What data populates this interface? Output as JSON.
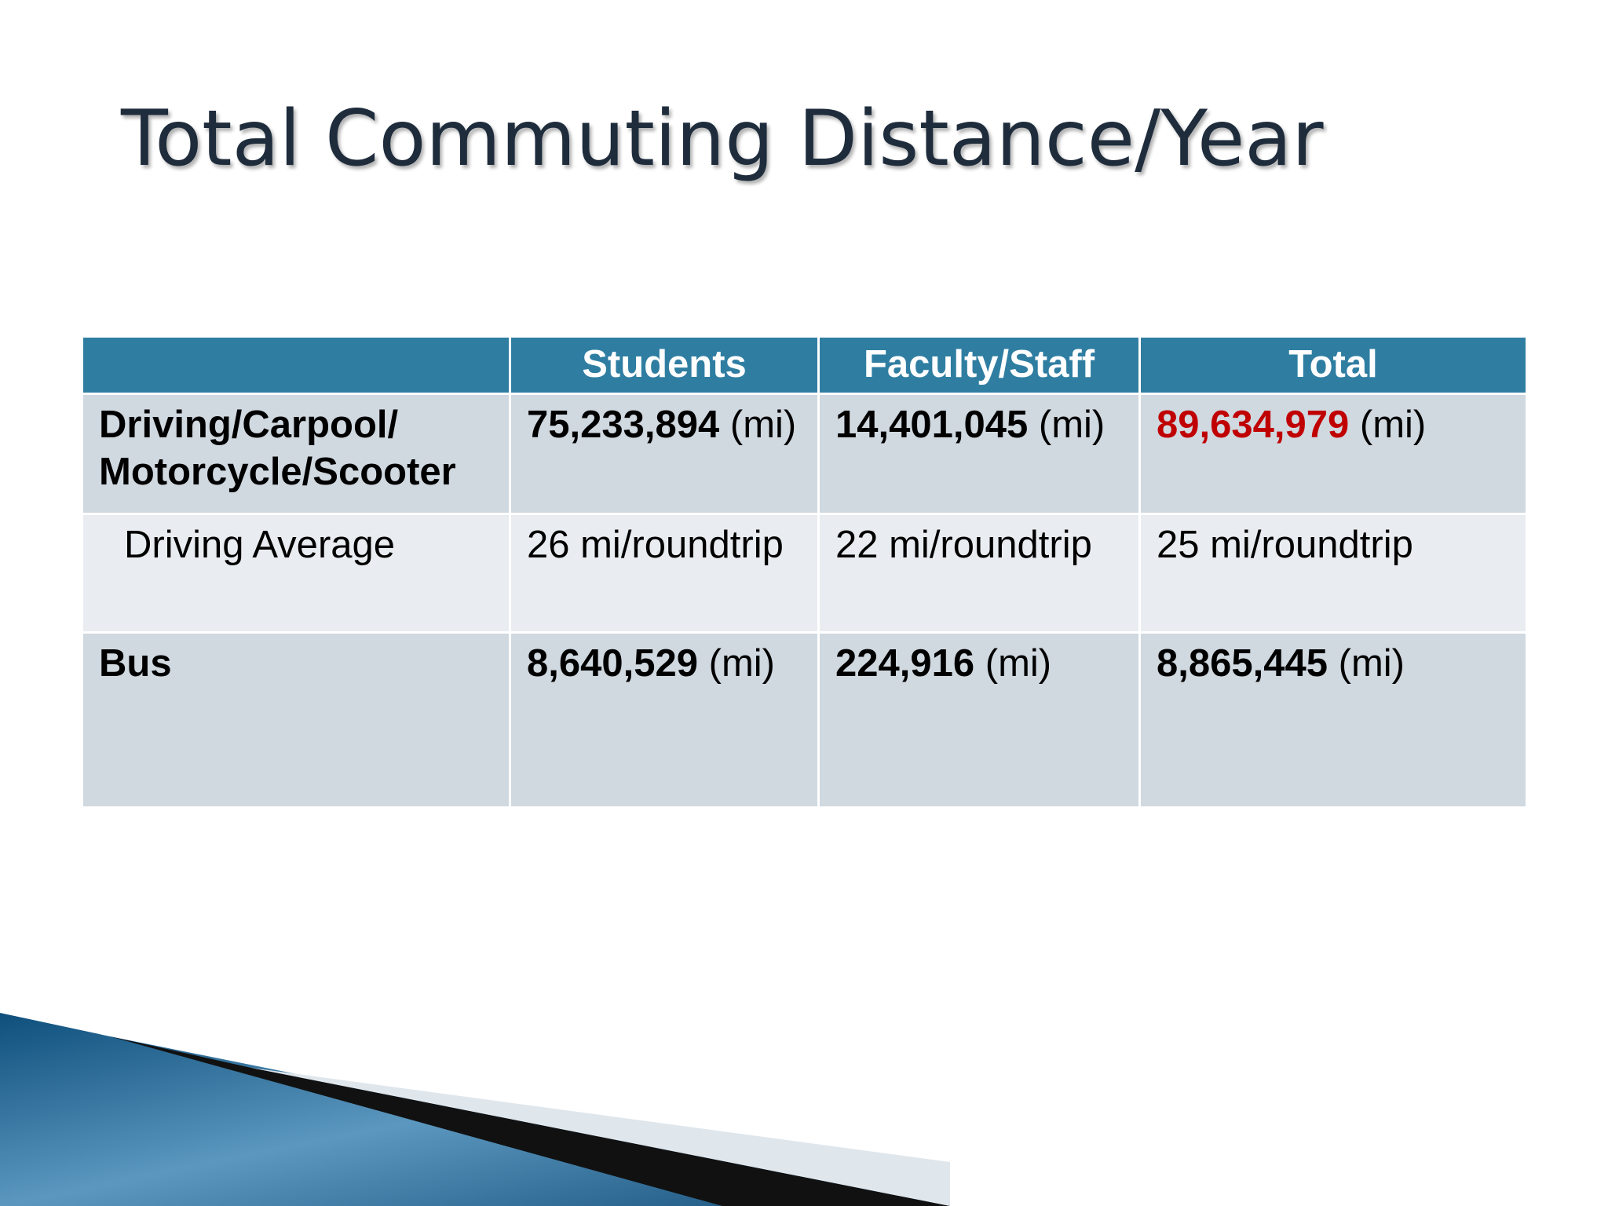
{
  "title": "Total Commuting Distance/Year",
  "table": {
    "header": [
      "",
      "Students",
      "Faculty/Staff",
      "Total"
    ],
    "rows": [
      {
        "label": "Driving/Carpool/ Motorcycle/Scooter",
        "bold": true,
        "indent": false,
        "cells": [
          {
            "value": "75,233,894",
            "unit": "(mi)"
          },
          {
            "value": "14,401,045",
            "unit": "(mi)"
          },
          {
            "value": "89,634,979",
            "unit": "(mi)",
            "color": "#c00000"
          }
        ]
      },
      {
        "label": "Driving Average",
        "bold": false,
        "indent": true,
        "cells": [
          {
            "text": "26 mi/roundtrip"
          },
          {
            "text": "22 mi/roundtrip"
          },
          {
            "text": "25 mi/roundtrip"
          }
        ]
      },
      {
        "label": "Bus",
        "bold": true,
        "indent": false,
        "cells": [
          {
            "value": "8,640,529",
            "unit": "(mi)"
          },
          {
            "value": "224,916",
            "unit": "(mi)"
          },
          {
            "value": "8,865,445",
            "unit": "(mi)"
          }
        ]
      }
    ]
  }
}
